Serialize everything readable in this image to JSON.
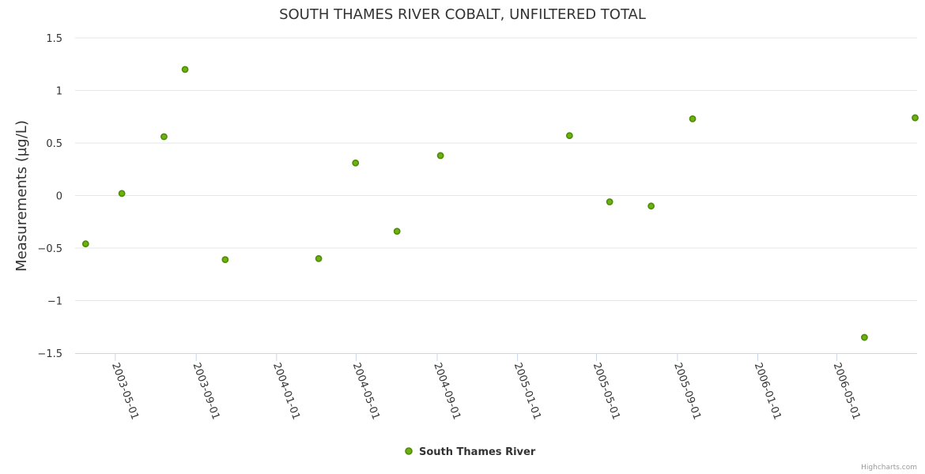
{
  "chart_data": {
    "type": "scatter",
    "title": "SOUTH THAMES RIVER COBALT, UNFILTERED TOTAL",
    "ylabel": "Measurements (µg/L)",
    "xlabel": "",
    "ylim": [
      -1.5,
      1.5
    ],
    "xlim": [
      "2003-03-01",
      "2006-08-31"
    ],
    "y_ticks": [
      1.5,
      1,
      0.5,
      0,
      -0.5,
      -1,
      -1.5
    ],
    "y_tick_labels": [
      "1.5",
      "1",
      "0.5",
      "0",
      "−0.5",
      "−1",
      "−1.5"
    ],
    "x_ticks": [
      "2003-05-01",
      "2003-09-01",
      "2004-01-01",
      "2004-05-01",
      "2004-09-01",
      "2005-01-01",
      "2005-05-01",
      "2005-09-01",
      "2006-01-01",
      "2006-05-01"
    ],
    "grid": true,
    "legend_position": "bottom-center",
    "series": [
      {
        "name": "South Thames River",
        "color": "#6cb20f",
        "marker_stroke": "#4f8a08",
        "points": [
          {
            "x": "2003-03-17",
            "y": -0.46
          },
          {
            "x": "2003-05-11",
            "y": 0.02
          },
          {
            "x": "2003-07-14",
            "y": 0.56
          },
          {
            "x": "2003-08-15",
            "y": 1.2
          },
          {
            "x": "2003-10-15",
            "y": -0.61
          },
          {
            "x": "2004-03-05",
            "y": -0.6
          },
          {
            "x": "2004-04-30",
            "y": 0.31
          },
          {
            "x": "2004-07-02",
            "y": -0.34
          },
          {
            "x": "2004-09-06",
            "y": 0.38
          },
          {
            "x": "2005-03-21",
            "y": 0.57
          },
          {
            "x": "2005-05-21",
            "y": -0.06
          },
          {
            "x": "2005-07-23",
            "y": -0.1
          },
          {
            "x": "2005-09-24",
            "y": 0.73
          },
          {
            "x": "2006-06-12",
            "y": -1.35
          },
          {
            "x": "2006-08-28",
            "y": 0.74
          }
        ]
      }
    ]
  },
  "credits": "Highcharts.com"
}
